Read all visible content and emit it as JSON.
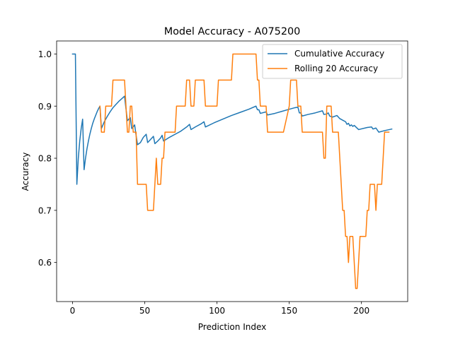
{
  "chart_data": {
    "type": "line",
    "title": "Model Accuracy - A075200",
    "xlabel": "Prediction Index",
    "ylabel": "Accuracy",
    "xlim": [
      -11,
      232
    ],
    "ylim": [
      0.525,
      1.025
    ],
    "xticks": [
      0,
      50,
      100,
      150,
      200
    ],
    "yticks": [
      0.6,
      0.7,
      0.8,
      0.9,
      1.0
    ],
    "xtick_labels": [
      "0",
      "50",
      "100",
      "150",
      "200"
    ],
    "ytick_labels": [
      "0.6",
      "0.7",
      "0.8",
      "0.9",
      "1.0"
    ],
    "grid": false,
    "legend_position": "upper right",
    "series": [
      {
        "name": "Cumulative Accuracy",
        "color": "#1f77b4",
        "points": [
          [
            0,
            1.0
          ],
          [
            2,
            1.0
          ],
          [
            3,
            0.75
          ],
          [
            4,
            0.8
          ],
          [
            5,
            0.833
          ],
          [
            6,
            0.857
          ],
          [
            7,
            0.875
          ],
          [
            8,
            0.778
          ],
          [
            9,
            0.8
          ],
          [
            10,
            0.818
          ],
          [
            11,
            0.833
          ],
          [
            12,
            0.846
          ],
          [
            13,
            0.857
          ],
          [
            14,
            0.867
          ],
          [
            15,
            0.875
          ],
          [
            16,
            0.882
          ],
          [
            17,
            0.889
          ],
          [
            18,
            0.895
          ],
          [
            19,
            0.9
          ],
          [
            20,
            0.857
          ],
          [
            22,
            0.87
          ],
          [
            24,
            0.88
          ],
          [
            26,
            0.889
          ],
          [
            28,
            0.897
          ],
          [
            30,
            0.903
          ],
          [
            32,
            0.909
          ],
          [
            34,
            0.914
          ],
          [
            36,
            0.919
          ],
          [
            37,
            0.895
          ],
          [
            38,
            0.872
          ],
          [
            39,
            0.875
          ],
          [
            40,
            0.878
          ],
          [
            41,
            0.857
          ],
          [
            42,
            0.86
          ],
          [
            43,
            0.864
          ],
          [
            44,
            0.844
          ],
          [
            45,
            0.826
          ],
          [
            47,
            0.83
          ],
          [
            49,
            0.84
          ],
          [
            51,
            0.846
          ],
          [
            52,
            0.83
          ],
          [
            54,
            0.836
          ],
          [
            56,
            0.842
          ],
          [
            57,
            0.828
          ],
          [
            59,
            0.833
          ],
          [
            61,
            0.839
          ],
          [
            62,
            0.844
          ],
          [
            63,
            0.833
          ],
          [
            67,
            0.84
          ],
          [
            71,
            0.846
          ],
          [
            75,
            0.852
          ],
          [
            79,
            0.86
          ],
          [
            81,
            0.865
          ],
          [
            82,
            0.855
          ],
          [
            85,
            0.86
          ],
          [
            89,
            0.866
          ],
          [
            91,
            0.87
          ],
          [
            92,
            0.86
          ],
          [
            98,
            0.868
          ],
          [
            104,
            0.875
          ],
          [
            110,
            0.882
          ],
          [
            116,
            0.888
          ],
          [
            122,
            0.894
          ],
          [
            127,
            0.9
          ],
          [
            128,
            0.893
          ],
          [
            129,
            0.893
          ],
          [
            130,
            0.886
          ],
          [
            134,
            0.889
          ],
          [
            135,
            0.883
          ],
          [
            140,
            0.886
          ],
          [
            145,
            0.89
          ],
          [
            150,
            0.894
          ],
          [
            154,
            0.897
          ],
          [
            156,
            0.898
          ],
          [
            157,
            0.887
          ],
          [
            158,
            0.887
          ],
          [
            159,
            0.881
          ],
          [
            163,
            0.884
          ],
          [
            168,
            0.887
          ],
          [
            173,
            0.891
          ],
          [
            174,
            0.884
          ],
          [
            176,
            0.885
          ],
          [
            177,
            0.887
          ],
          [
            178,
            0.881
          ],
          [
            180,
            0.879
          ],
          [
            183,
            0.882
          ],
          [
            185,
            0.876
          ],
          [
            187,
            0.873
          ],
          [
            189,
            0.87
          ],
          [
            190,
            0.865
          ],
          [
            191,
            0.867
          ],
          [
            192,
            0.862
          ],
          [
            193,
            0.864
          ],
          [
            194,
            0.861
          ],
          [
            195,
            0.863
          ],
          [
            198,
            0.855
          ],
          [
            204,
            0.859
          ],
          [
            207,
            0.86
          ],
          [
            208,
            0.856
          ],
          [
            210,
            0.858
          ],
          [
            212,
            0.85
          ],
          [
            216,
            0.853
          ],
          [
            221,
            0.856
          ]
        ]
      },
      {
        "name": "Rolling 20 Accuracy",
        "color": "#ff7f0e",
        "points": [
          [
            19,
            0.9
          ],
          [
            20,
            0.85
          ],
          [
            22,
            0.85
          ],
          [
            23,
            0.9
          ],
          [
            27,
            0.9
          ],
          [
            28,
            0.95
          ],
          [
            36,
            0.95
          ],
          [
            37,
            0.9
          ],
          [
            38,
            0.85
          ],
          [
            39,
            0.85
          ],
          [
            40,
            0.9
          ],
          [
            41,
            0.9
          ],
          [
            42,
            0.85
          ],
          [
            44,
            0.85
          ],
          [
            45,
            0.75
          ],
          [
            51,
            0.75
          ],
          [
            52,
            0.7
          ],
          [
            56,
            0.7
          ],
          [
            57,
            0.75
          ],
          [
            58,
            0.8
          ],
          [
            59,
            0.75
          ],
          [
            61,
            0.75
          ],
          [
            62,
            0.8
          ],
          [
            63,
            0.8
          ],
          [
            64,
            0.85
          ],
          [
            71,
            0.85
          ],
          [
            72,
            0.9
          ],
          [
            78,
            0.9
          ],
          [
            79,
            0.95
          ],
          [
            81,
            0.95
          ],
          [
            82,
            0.9
          ],
          [
            84,
            0.9
          ],
          [
            85,
            0.95
          ],
          [
            91,
            0.95
          ],
          [
            92,
            0.9
          ],
          [
            100,
            0.9
          ],
          [
            101,
            0.95
          ],
          [
            110,
            0.95
          ],
          [
            111,
            1.0
          ],
          [
            127,
            1.0
          ],
          [
            128,
            0.95
          ],
          [
            129,
            0.95
          ],
          [
            130,
            0.9
          ],
          [
            134,
            0.9
          ],
          [
            135,
            0.85
          ],
          [
            146,
            0.85
          ],
          [
            150,
            0.9
          ],
          [
            151,
            0.95
          ],
          [
            155,
            0.95
          ],
          [
            156,
            0.9
          ],
          [
            158,
            0.9
          ],
          [
            159,
            0.85
          ],
          [
            172,
            0.85
          ],
          [
            173,
            0.85
          ],
          [
            174,
            0.8
          ],
          [
            175,
            0.8
          ],
          [
            176,
            0.9
          ],
          [
            179,
            0.9
          ],
          [
            180,
            0.85
          ],
          [
            184,
            0.85
          ],
          [
            187,
            0.7
          ],
          [
            188,
            0.7
          ],
          [
            189,
            0.65
          ],
          [
            190,
            0.65
          ],
          [
            191,
            0.6
          ],
          [
            192,
            0.65
          ],
          [
            194,
            0.65
          ],
          [
            196,
            0.55
          ],
          [
            197,
            0.55
          ],
          [
            199,
            0.65
          ],
          [
            203,
            0.65
          ],
          [
            204,
            0.7
          ],
          [
            205,
            0.7
          ],
          [
            206,
            0.75
          ],
          [
            209,
            0.75
          ],
          [
            210,
            0.7
          ],
          [
            211,
            0.75
          ],
          [
            214,
            0.75
          ],
          [
            216,
            0.85
          ],
          [
            218,
            0.85
          ],
          [
            219,
            0.85
          ]
        ]
      }
    ]
  }
}
